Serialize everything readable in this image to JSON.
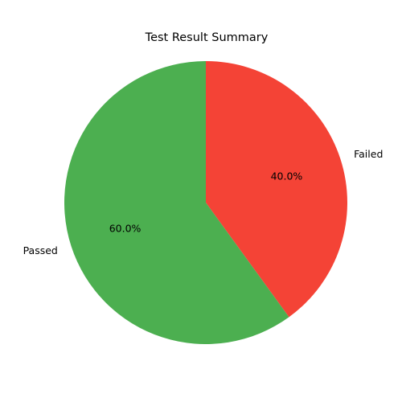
{
  "chart_data": {
    "type": "pie",
    "title": "Test Result Summary",
    "slices": [
      {
        "label": "Passed",
        "value": 60.0,
        "pct_label": "60.0%",
        "color": "#4caf50"
      },
      {
        "label": "Failed",
        "value": 40.0,
        "pct_label": "40.0%",
        "color": "#f44336"
      }
    ]
  }
}
